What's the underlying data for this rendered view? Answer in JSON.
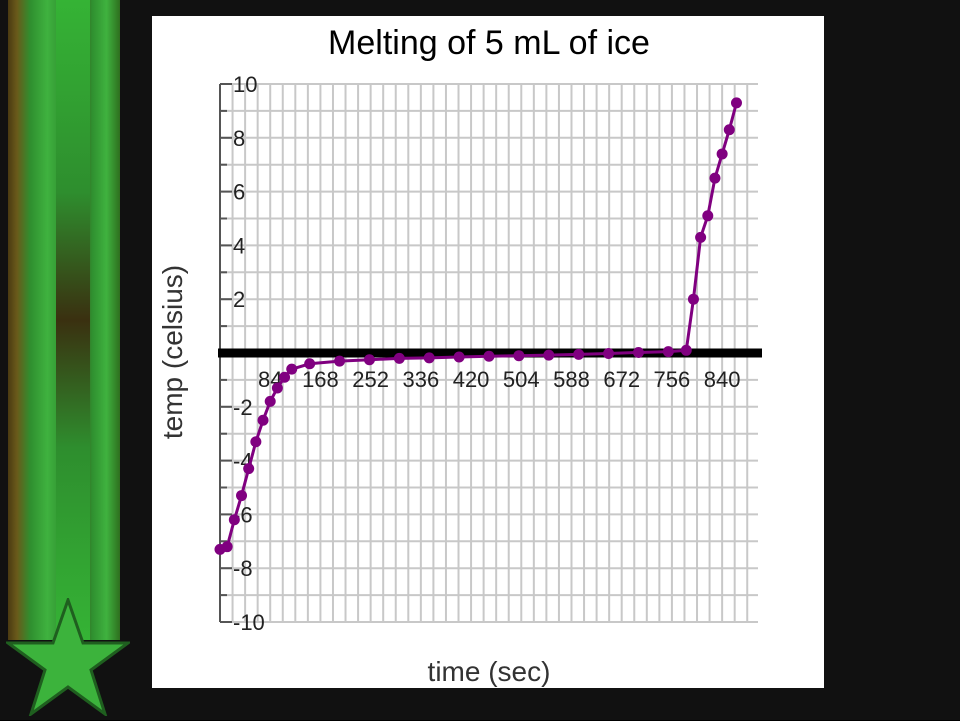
{
  "colors": {
    "slide_background": "#111111",
    "ribbon_green": "#3fb23f",
    "ribbon_brown": "#4a3a12",
    "star": "#3cb33c",
    "series": "#800080",
    "grid": "#c8c8c8",
    "zero_axis": "#000000"
  },
  "decor": {
    "star_icon": "star-icon"
  },
  "chart_data": {
    "type": "line",
    "title": "Melting of 5 mL of ice",
    "xlabel": "time (sec)",
    "ylabel": "temp (celsius)",
    "xlim": [
      0,
      900
    ],
    "ylim": [
      -10,
      10
    ],
    "grid": true,
    "legend": "none",
    "x_ticks": [
      "84",
      "168",
      "252",
      "336",
      "420",
      "504",
      "588",
      "672",
      "756",
      "840"
    ],
    "y_ticks": [
      "10",
      "8",
      "6",
      "4",
      "2",
      "-2",
      "-4",
      "-6",
      "-8",
      "-10"
    ],
    "series": [
      {
        "color": "#800080",
        "x": [
          0,
          12,
          24,
          36,
          48,
          60,
          72,
          84,
          96,
          108,
          120,
          150,
          200,
          250,
          300,
          350,
          400,
          450,
          500,
          550,
          600,
          650,
          700,
          750,
          780,
          792,
          804,
          816,
          828,
          840,
          852,
          864
        ],
        "y": [
          -7.3,
          -7.2,
          -6.2,
          -5.3,
          -4.3,
          -3.3,
          -2.5,
          -1.8,
          -1.3,
          -0.9,
          -0.6,
          -0.4,
          -0.3,
          -0.25,
          -0.2,
          -0.18,
          -0.15,
          -0.12,
          -0.1,
          -0.08,
          -0.05,
          -0.02,
          0.02,
          0.05,
          0.1,
          2.0,
          4.3,
          5.1,
          6.5,
          7.4,
          8.3,
          9.3
        ]
      }
    ]
  }
}
